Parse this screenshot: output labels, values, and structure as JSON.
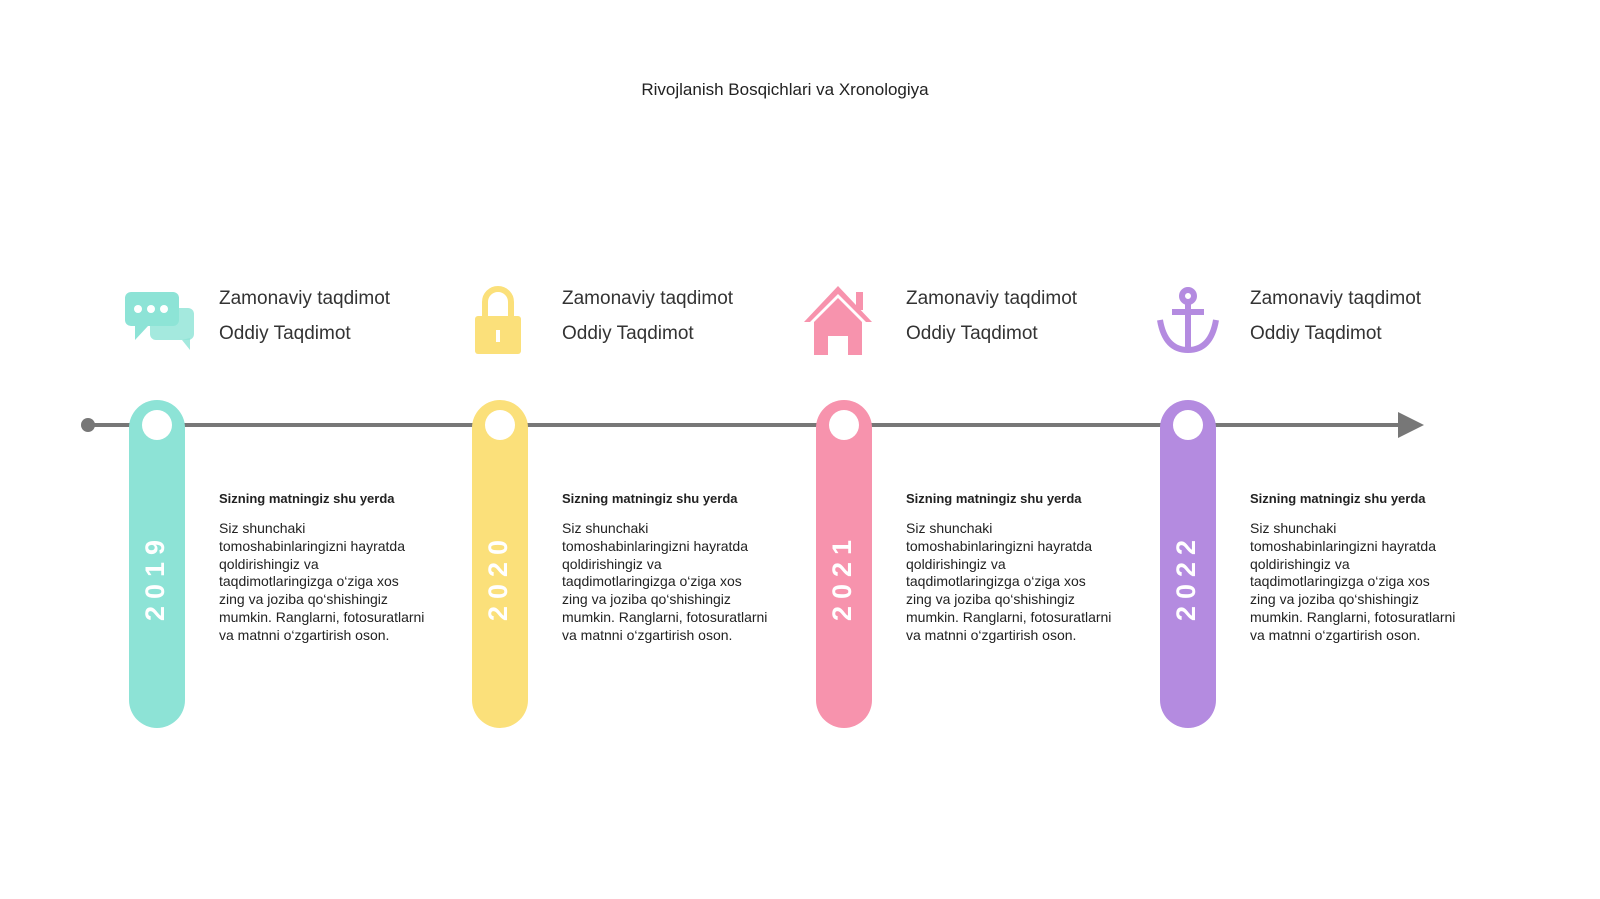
{
  "title": "Rivojlanish Bosqichlari va Xronologiya",
  "stages": [
    {
      "year": "2019",
      "heading": "Zamonaviy taqdimot",
      "subheading": "Oddiy Taqdimot",
      "text_title": "Sizning matningiz shu yerda",
      "text": "Siz shunchaki tomoshabinlaringizni hayratda qoldirishingiz va taqdimotlaringizga o‘ziga xos zing va joziba qo‘shishingiz mumkin. Ranglarni, fotosuratlarni va matnni o‘zgartirish oson."
    },
    {
      "year": "2020",
      "heading": "Zamonaviy taqdimot",
      "subheading": "Oddiy Taqdimot",
      "text_title": "Sizning matningiz shu yerda",
      "text": "Siz shunchaki tomoshabinlaringizni hayratda qoldirishingiz va taqdimotlaringizga o‘ziga xos zing va joziba qo‘shishingiz mumkin. Ranglarni, fotosuratlarni va matnni o‘zgartirish oson."
    },
    {
      "year": "2021",
      "heading": "Zamonaviy taqdimot",
      "subheading": "Oddiy Taqdimot",
      "text_title": "Sizning matningiz shu yerda",
      "text": "Siz shunchaki tomoshabinlaringizni hayratda qoldirishingiz va taqdimotlaringizga o‘ziga xos zing va joziba qo‘shishingiz mumkin. Ranglarni, fotosuratlarni va matnni o‘zgartirish oson."
    },
    {
      "year": "2022",
      "heading": "Zamonaviy taqdimot",
      "subheading": "Oddiy Taqdimot",
      "text_title": "Sizning matningiz shu yerda",
      "text": "Siz shunchaki tomoshabinlaringizni hayratda qoldirishingiz va taqdimotlaringizga o‘ziga xos zing va joziba qo‘shishingiz mumkin. Ranglarni, fotosuratlarni va matnni o‘zgartirish oson."
    }
  ]
}
